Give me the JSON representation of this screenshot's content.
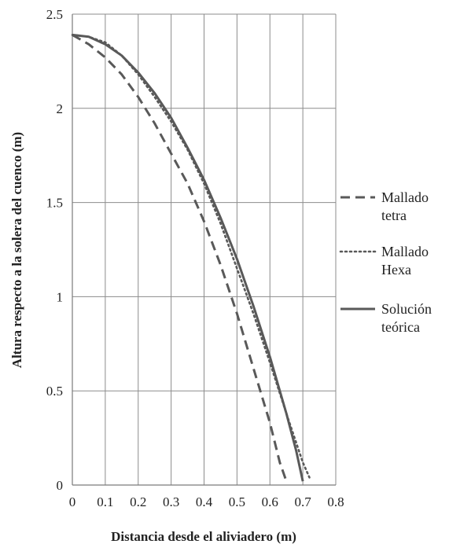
{
  "chart_data": {
    "type": "line",
    "title": "",
    "xlabel": "Distancia desde el aliviadero (m)",
    "ylabel": "Altura respecto a la solera del cuenco (m)",
    "xlim": [
      0,
      0.8
    ],
    "ylim": [
      0,
      2.5
    ],
    "xticks": [
      "0",
      "0.1",
      "0.2",
      "0.3",
      "0.4",
      "0.5",
      "0.6",
      "0.7",
      "0.8"
    ],
    "yticks": [
      "0",
      "0.5",
      "1",
      "1.5",
      "2",
      "2.5"
    ],
    "grid": true,
    "legend_position": "right",
    "series": [
      {
        "name": "Mallado tetra",
        "style": "dashed",
        "color": "#595959",
        "x": [
          0,
          0.05,
          0.1,
          0.15,
          0.2,
          0.25,
          0.3,
          0.35,
          0.4,
          0.45,
          0.5,
          0.55,
          0.6,
          0.63,
          0.65
        ],
        "y": [
          2.39,
          2.34,
          2.27,
          2.18,
          2.06,
          1.92,
          1.76,
          1.6,
          1.4,
          1.17,
          0.91,
          0.62,
          0.33,
          0.12,
          0.02
        ]
      },
      {
        "name": "Mallado Hexa",
        "style": "dotted",
        "color": "#595959",
        "x": [
          0,
          0.05,
          0.1,
          0.15,
          0.2,
          0.25,
          0.3,
          0.35,
          0.4,
          0.45,
          0.5,
          0.55,
          0.6,
          0.65,
          0.7,
          0.72
        ],
        "y": [
          2.39,
          2.38,
          2.35,
          2.28,
          2.18,
          2.06,
          1.93,
          1.78,
          1.6,
          1.39,
          1.15,
          0.91,
          0.65,
          0.38,
          0.12,
          0.04
        ]
      },
      {
        "name": "Solución teórica",
        "style": "solid",
        "color": "#595959",
        "x": [
          0,
          0.05,
          0.1,
          0.15,
          0.2,
          0.25,
          0.3,
          0.35,
          0.4,
          0.45,
          0.5,
          0.55,
          0.6,
          0.65,
          0.68,
          0.7
        ],
        "y": [
          2.39,
          2.38,
          2.34,
          2.28,
          2.19,
          2.08,
          1.95,
          1.79,
          1.62,
          1.42,
          1.2,
          0.95,
          0.68,
          0.38,
          0.18,
          0.02
        ]
      }
    ],
    "legend": [
      {
        "lines": [
          "Mallado",
          "tetra"
        ]
      },
      {
        "lines": [
          "Mallado",
          "Hexa"
        ]
      },
      {
        "lines": [
          "Solución",
          "teórica"
        ]
      }
    ]
  }
}
